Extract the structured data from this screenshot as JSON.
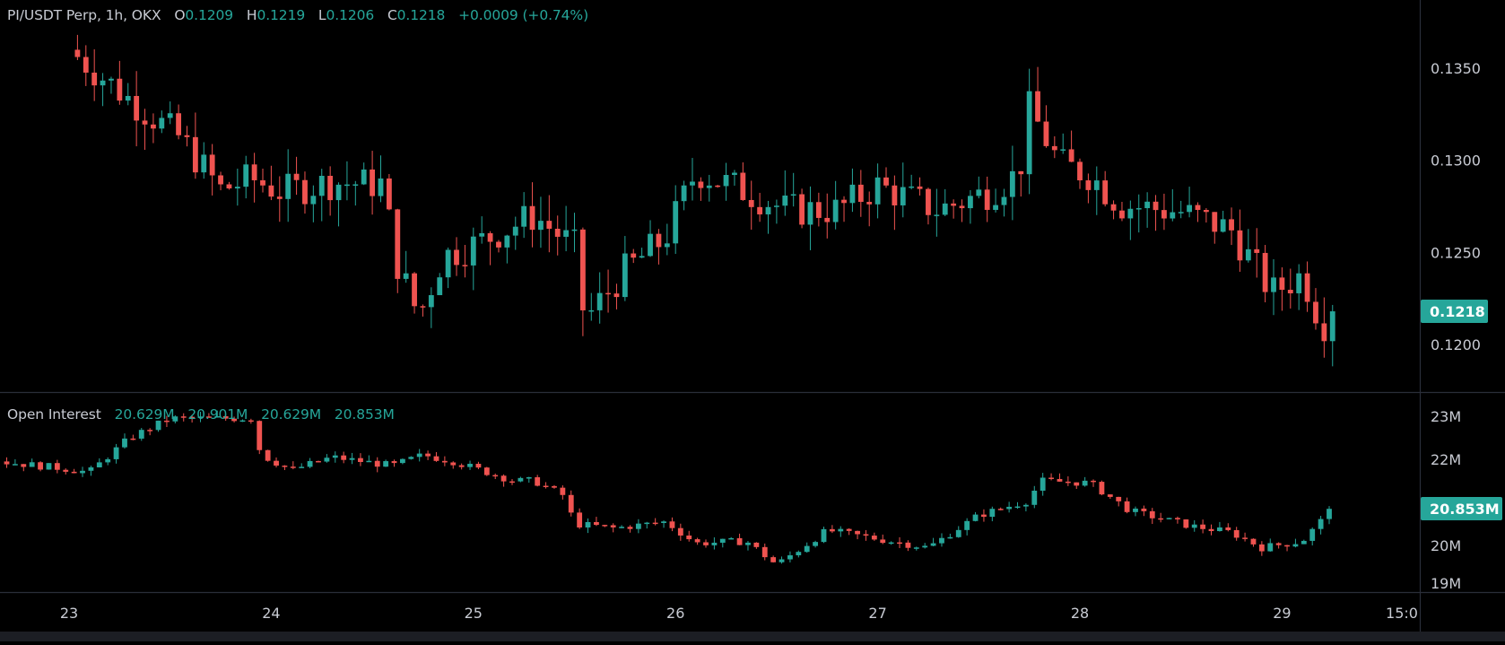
{
  "colors": {
    "up": "#26a69a",
    "down": "#ef5350",
    "background": "#000000",
    "text": "#c8cbd3",
    "divider": "#2a2e39"
  },
  "main_pane": {
    "symbol": "PI/USDT Perp, 1h, OKX",
    "ohlc": [
      {
        "key": "O",
        "value": "0.1209"
      },
      {
        "key": "H",
        "value": "0.1219"
      },
      {
        "key": "L",
        "value": "0.1206"
      },
      {
        "key": "C",
        "value": "0.1218"
      }
    ],
    "change": "+0.0009 (+0.74%)",
    "price_ticks": [
      "0.1350",
      "0.1300",
      "0.1250",
      "0.1200"
    ],
    "last_price": "0.1218"
  },
  "oi_pane": {
    "label": "Open Interest",
    "values": [
      "20.629M",
      "20.901M",
      "20.629M",
      "20.853M"
    ],
    "ticks": [
      "23M",
      "22M",
      "20M",
      "19M"
    ],
    "last_value": "20.853M"
  },
  "time_axis": [
    "23",
    "24",
    "25",
    "26",
    "27",
    "28",
    "29",
    "15:0"
  ],
  "chart_data": [
    {
      "type": "candlestick",
      "title": "PI/USDT Perp, 1h, OKX",
      "x": [
        "23",
        "24",
        "25",
        "26",
        "27",
        "28",
        "29"
      ],
      "ylim": [
        0.119,
        0.138
      ],
      "y_ticks": [
        0.12,
        0.125,
        0.13,
        0.135
      ],
      "close_path": [
        {
          "x": 0.0,
          "close": 0.136
        },
        {
          "x": 0.3,
          "close": 0.1333
        },
        {
          "x": 0.55,
          "close": 0.1312
        },
        {
          "x": 0.75,
          "close": 0.1284
        },
        {
          "x": 0.9,
          "close": 0.129
        },
        {
          "x": 1.05,
          "close": 0.1283
        },
        {
          "x": 1.3,
          "close": 0.1288
        },
        {
          "x": 1.55,
          "close": 0.1287
        },
        {
          "x": 1.62,
          "close": 0.1245
        },
        {
          "x": 1.73,
          "close": 0.1215
        },
        {
          "x": 1.85,
          "close": 0.1248
        },
        {
          "x": 2.0,
          "close": 0.1254
        },
        {
          "x": 2.3,
          "close": 0.127
        },
        {
          "x": 2.5,
          "close": 0.1253
        },
        {
          "x": 2.55,
          "close": 0.1213
        },
        {
          "x": 2.75,
          "close": 0.124
        },
        {
          "x": 2.95,
          "close": 0.1258
        },
        {
          "x": 3.1,
          "close": 0.1294
        },
        {
          "x": 3.35,
          "close": 0.1283
        },
        {
          "x": 3.55,
          "close": 0.1273
        },
        {
          "x": 3.8,
          "close": 0.1273
        },
        {
          "x": 4.0,
          "close": 0.1286
        },
        {
          "x": 4.3,
          "close": 0.1273
        },
        {
          "x": 4.55,
          "close": 0.1283
        },
        {
          "x": 4.7,
          "close": 0.1293
        },
        {
          "x": 4.75,
          "close": 0.1328
        },
        {
          "x": 4.9,
          "close": 0.1298
        },
        {
          "x": 5.05,
          "close": 0.1292
        },
        {
          "x": 5.2,
          "close": 0.1276
        },
        {
          "x": 5.5,
          "close": 0.1272
        },
        {
          "x": 5.75,
          "close": 0.1262
        },
        {
          "x": 5.95,
          "close": 0.1228
        },
        {
          "x": 6.1,
          "close": 0.1238
        },
        {
          "x": 6.2,
          "close": 0.121
        },
        {
          "x": 6.25,
          "close": 0.1218
        }
      ],
      "last_price": 0.1218
    },
    {
      "type": "candlestick",
      "title": "Open Interest",
      "x": [
        "23",
        "24",
        "25",
        "26",
        "27",
        "28",
        "29"
      ],
      "ylim": [
        18.9,
        23.3
      ],
      "y_ticks": [
        19,
        20,
        21,
        22,
        23
      ],
      "units": "M",
      "close_path": [
        {
          "x": -0.35,
          "close": 21.95
        },
        {
          "x": -0.05,
          "close": 21.8
        },
        {
          "x": 0.1,
          "close": 21.7
        },
        {
          "x": 0.3,
          "close": 22.5
        },
        {
          "x": 0.5,
          "close": 22.95
        },
        {
          "x": 0.9,
          "close": 22.95
        },
        {
          "x": 0.95,
          "close": 22.1
        },
        {
          "x": 1.1,
          "close": 21.75
        },
        {
          "x": 1.3,
          "close": 22.05
        },
        {
          "x": 1.6,
          "close": 21.85
        },
        {
          "x": 1.75,
          "close": 22.1
        },
        {
          "x": 1.9,
          "close": 21.95
        },
        {
          "x": 2.2,
          "close": 21.5
        },
        {
          "x": 2.3,
          "close": 21.5
        },
        {
          "x": 2.45,
          "close": 21.15
        },
        {
          "x": 2.5,
          "close": 20.5
        },
        {
          "x": 2.7,
          "close": 20.4
        },
        {
          "x": 2.95,
          "close": 20.55
        },
        {
          "x": 3.1,
          "close": 20.05
        },
        {
          "x": 3.35,
          "close": 20.1
        },
        {
          "x": 3.5,
          "close": 19.55
        },
        {
          "x": 3.75,
          "close": 20.35
        },
        {
          "x": 4.0,
          "close": 20.15
        },
        {
          "x": 4.25,
          "close": 19.95
        },
        {
          "x": 4.5,
          "close": 20.7
        },
        {
          "x": 4.75,
          "close": 21.05
        },
        {
          "x": 4.8,
          "close": 21.5
        },
        {
          "x": 5.05,
          "close": 21.45
        },
        {
          "x": 5.25,
          "close": 20.8
        },
        {
          "x": 5.55,
          "close": 20.45
        },
        {
          "x": 5.75,
          "close": 20.3
        },
        {
          "x": 5.9,
          "close": 19.95
        },
        {
          "x": 6.1,
          "close": 20.1
        },
        {
          "x": 6.25,
          "close": 20.85
        }
      ],
      "last_value": 20.853
    }
  ]
}
